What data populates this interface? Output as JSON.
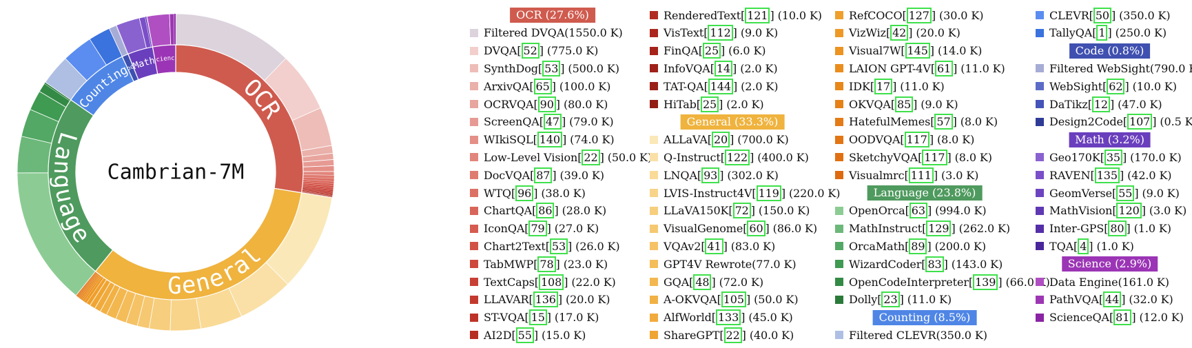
{
  "center_title": "Cambrian-7M",
  "chart_data": {
    "type": "sunburst",
    "title": "Cambrian-7M",
    "unit": "K",
    "categories": [
      {
        "name": "OCR",
        "label": "OCR (27.6%)",
        "percent": 27.6,
        "color": "#cf5b4e",
        "items": [
          {
            "name": "Filtered DVQA",
            "cite": "",
            "value": "1550.0 K",
            "color": "#dcd3dd"
          },
          {
            "name": "DVQA",
            "cite": "52",
            "value": "775.0 K",
            "color": "#f2cfcc"
          },
          {
            "name": "SynthDog",
            "cite": "53",
            "value": "500.0 K",
            "color": "#eebdb8"
          },
          {
            "name": "ArxivQA",
            "cite": "65",
            "value": "100.0 K",
            "color": "#eab0aa"
          },
          {
            "name": "OCRVQA",
            "cite": "90",
            "value": "80.0 K",
            "color": "#e8a59e"
          },
          {
            "name": "ScreenQA",
            "cite": "47",
            "value": "79.0 K",
            "color": "#e69a93"
          },
          {
            "name": "WIkiSQL",
            "cite": "140",
            "value": "74.0 K",
            "color": "#e48f87"
          },
          {
            "name": "Low-Level Vision",
            "cite": "22",
            "value": "50.0 K",
            "color": "#e2857c"
          },
          {
            "name": "DocVQA",
            "cite": "87",
            "value": "39.0 K",
            "color": "#df7a70"
          },
          {
            "name": "WTQ",
            "cite": "96",
            "value": "38.0 K",
            "color": "#dc7065"
          },
          {
            "name": "ChartQA",
            "cite": "86",
            "value": "28.0 K",
            "color": "#d9655a"
          },
          {
            "name": "IconQA",
            "cite": "79",
            "value": "27.0 K",
            "color": "#d65b50"
          },
          {
            "name": "Chart2Text",
            "cite": "53",
            "value": "26.0 K",
            "color": "#d25146"
          },
          {
            "name": "TabMWP",
            "cite": "78",
            "value": "23.0 K",
            "color": "#cd483d"
          },
          {
            "name": "TextCaps",
            "cite": "108",
            "value": "22.0 K",
            "color": "#c84035"
          },
          {
            "name": "LLAVAR",
            "cite": "136",
            "value": "20.0 K",
            "color": "#c3392e"
          },
          {
            "name": "ST-VQA",
            "cite": "15",
            "value": "17.0 K",
            "color": "#bd3329"
          },
          {
            "name": "AI2D",
            "cite": "55",
            "value": "15.0 K",
            "color": "#b72e24"
          },
          {
            "name": "RenderedText",
            "cite": "121",
            "value": "10.0 K",
            "color": "#b12a21"
          },
          {
            "name": "VisText",
            "cite": "112",
            "value": "9.0 K",
            "color": "#ab261e"
          },
          {
            "name": "FinQA",
            "cite": "25",
            "value": "6.0 K",
            "color": "#a5231b"
          },
          {
            "name": "InfoVQA",
            "cite": "14",
            "value": "2.0 K",
            "color": "#9f2119"
          },
          {
            "name": "TAT-QA",
            "cite": "144",
            "value": "2.0 K",
            "color": "#992017"
          },
          {
            "name": "HiTab",
            "cite": "25",
            "value": "2.0 K",
            "color": "#921e16"
          }
        ]
      },
      {
        "name": "General",
        "label": "General (33.3%)",
        "percent": 33.3,
        "color": "#efb33e",
        "items": [
          {
            "name": "ALLaVA",
            "cite": "20",
            "value": "700.0 K",
            "color": "#fbe8b8"
          },
          {
            "name": "Q-Instruct",
            "cite": "122",
            "value": "400.0 K",
            "color": "#fae0a6"
          },
          {
            "name": "LNQA",
            "cite": "93",
            "value": "302.0 K",
            "color": "#f9da97"
          },
          {
            "name": "LVIS-Instruct4V",
            "cite": "119",
            "value": "220.0 K",
            "color": "#f8d48a"
          },
          {
            "name": "LLaVA150K",
            "cite": "72",
            "value": "150.0 K",
            "color": "#f7ce7d"
          },
          {
            "name": "VisualGenome",
            "cite": "60",
            "value": "86.0 K",
            "color": "#f6c871"
          },
          {
            "name": "VQAv2",
            "cite": "41",
            "value": "83.0 K",
            "color": "#f5c265"
          },
          {
            "name": "GPT4V Rewrote",
            "cite": "",
            "value": "77.0 K",
            "color": "#f4bd5a"
          },
          {
            "name": "GQA",
            "cite": "48",
            "value": "72.0 K",
            "color": "#f3b74f"
          },
          {
            "name": "A-OKVQA",
            "cite": "105",
            "value": "50.0 K",
            "color": "#f2b145"
          },
          {
            "name": "AlfWorld",
            "cite": "133",
            "value": "45.0 K",
            "color": "#f1ab3c"
          },
          {
            "name": "ShareGPT",
            "cite": "22",
            "value": "40.0 K",
            "color": "#f0a533"
          },
          {
            "name": "RefCOCO",
            "cite": "127",
            "value": "30.0 K",
            "color": "#ef9f2c"
          },
          {
            "name": "VizWiz",
            "cite": "42",
            "value": "20.0 K",
            "color": "#ee9926"
          },
          {
            "name": "Visual7W",
            "cite": "145",
            "value": "14.0 K",
            "color": "#ec9321"
          },
          {
            "name": "LAION GPT-4V",
            "cite": "61",
            "value": "11.0 K",
            "color": "#ea8d1d"
          },
          {
            "name": "IDK",
            "cite": "17",
            "value": "11.0 K",
            "color": "#e8871a"
          },
          {
            "name": "OKVQA",
            "cite": "85",
            "value": "9.0 K",
            "color": "#e68118"
          },
          {
            "name": "HatefulMemes",
            "cite": "57",
            "value": "8.0 K",
            "color": "#e47b16"
          },
          {
            "name": "OODVQA",
            "cite": "117",
            "value": "8.0 K",
            "color": "#e27514"
          },
          {
            "name": "SketchyVQA",
            "cite": "117",
            "value": "8.0 K",
            "color": "#e07012"
          },
          {
            "name": "Visualmrc",
            "cite": "111",
            "value": "3.0 K",
            "color": "#de6a10"
          }
        ]
      },
      {
        "name": "Language",
        "label": "Language (23.8%)",
        "percent": 23.8,
        "color": "#4f9a5e",
        "items": [
          {
            "name": "OpenOrca",
            "cite": "63",
            "value": "994.0 K",
            "color": "#8ccc94"
          },
          {
            "name": "MathInstruct",
            "cite": "129",
            "value": "262.0 K",
            "color": "#6cb87a"
          },
          {
            "name": "OrcaMath",
            "cite": "89",
            "value": "200.0 K",
            "color": "#52a864"
          },
          {
            "name": "WizardCoder",
            "cite": "83",
            "value": "143.0 K",
            "color": "#3f9a52"
          },
          {
            "name": "OpenCodeInterpreter",
            "cite": "139",
            "value": "66.0 K",
            "color": "#338a45"
          },
          {
            "name": "Dolly",
            "cite": "23",
            "value": "11.0 K",
            "color": "#2a7a3a"
          }
        ]
      },
      {
        "name": "Counting",
        "label": "Counting (8.5%)",
        "percent": 8.5,
        "color": "#4f86e6",
        "items": [
          {
            "name": "Filtered CLEVR",
            "cite": "",
            "value": "350.0 K",
            "color": "#aebfe3"
          },
          {
            "name": "CLEVR",
            "cite": "50",
            "value": "350.0 K",
            "color": "#5b8df0"
          },
          {
            "name": "TallyQA",
            "cite": "1",
            "value": "250.0 K",
            "color": "#3a72de"
          }
        ]
      },
      {
        "name": "Code",
        "label": "Code (0.8%)",
        "percent": 0.8,
        "color": "#3f50b0",
        "items": [
          {
            "name": "Filtered WebSight",
            "cite": "",
            "value": "790.0 K",
            "color": "#a6acd6"
          },
          {
            "name": "WebSight",
            "cite": "62",
            "value": "10.0 K",
            "color": "#5c6bc6"
          },
          {
            "name": "DaTikz",
            "cite": "12",
            "value": "47.0 K",
            "color": "#4454b8"
          },
          {
            "name": "Design2Code",
            "cite": "107",
            "value": "0.5 K",
            "color": "#2e3c96"
          }
        ]
      },
      {
        "name": "Math",
        "label": "Math (3.2%)",
        "percent": 3.2,
        "color": "#6a3fbd",
        "items": [
          {
            "name": "Geo170K",
            "cite": "35",
            "value": "170.0 K",
            "color": "#8a62d0"
          },
          {
            "name": "RAVEN",
            "cite": "135",
            "value": "42.0 K",
            "color": "#7a4fc8"
          },
          {
            "name": "GeomVerse",
            "cite": "55",
            "value": "9.0 K",
            "color": "#6d44bf"
          },
          {
            "name": "MathVision",
            "cite": "120",
            "value": "3.0 K",
            "color": "#6038b4"
          },
          {
            "name": "Inter-GPS",
            "cite": "80",
            "value": "1.0 K",
            "color": "#552fa8"
          },
          {
            "name": "TQA",
            "cite": "4",
            "value": "1.0 K",
            "color": "#4a269b"
          }
        ]
      },
      {
        "name": "Science",
        "label": "Science (2.9%)",
        "percent": 2.9,
        "color": "#9b35b5",
        "items": [
          {
            "name": "Data Engine",
            "cite": "",
            "value": "161.0 K",
            "color": "#b04fc2"
          },
          {
            "name": "PathVQA",
            "cite": "44",
            "value": "32.0 K",
            "color": "#9d36b3"
          },
          {
            "name": "ScienceQA",
            "cite": "81",
            "value": "12.0 K",
            "color": "#8a24a3"
          }
        ]
      }
    ]
  }
}
